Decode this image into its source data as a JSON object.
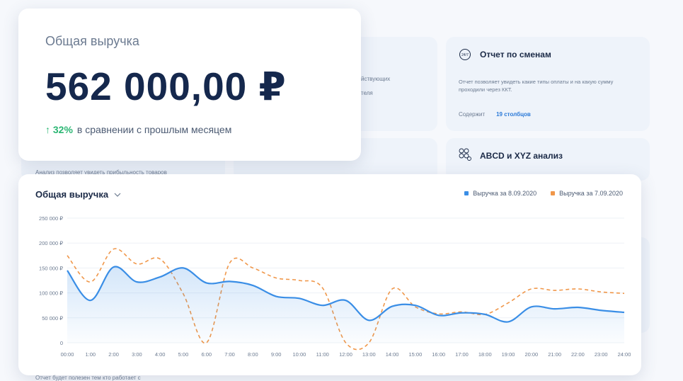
{
  "revenue": {
    "label": "Общая выручка",
    "value": "562 000,00 ₽",
    "change": "↑ 32%",
    "comparison": "в сравнении с прошлым месяцем"
  },
  "background": {
    "partial_text_1": "йствующих",
    "partial_text_2": "теля",
    "partial_desc": "Анализ позволяет увидеть прибыльность товаров",
    "footer_partial": "Отчет будет полезен тем кто работает с",
    "reports": [
      {
        "title": "Отчет по сменам",
        "icon": "clock-24-7-icon",
        "description": "Отчет позволяет увидеть какие типы оплаты и на какую сумму проходили через ККТ.",
        "meta_label": "Содержит",
        "meta_value": "19 столбцов"
      },
      {
        "title": "ABCD и XYZ анализ",
        "icon": "abc-analysis-icon"
      }
    ]
  },
  "chart_data": {
    "type": "line",
    "title": "Общая выручка",
    "x": [
      "00:00",
      "1:00",
      "2:00",
      "3:00",
      "4:00",
      "5:00",
      "6:00",
      "7:00",
      "8:00",
      "9:00",
      "10:00",
      "11:00",
      "12:00",
      "13:00",
      "14:00",
      "15:00",
      "16:00",
      "17:00",
      "18:00",
      "19:00",
      "20:00",
      "21:00",
      "22:00",
      "23:00",
      "24:00"
    ],
    "yticks": [
      "0",
      "50 000 ₽",
      "100 000 ₽",
      "150 000 ₽",
      "200 000 ₽",
      "250 000 ₽"
    ],
    "ylim": [
      0,
      250000
    ],
    "legend_position": "top-right",
    "grid": true,
    "series": [
      {
        "name": "Выручка за 8.09.2020",
        "color": "#3a8ee6",
        "style": "solid-area",
        "values": [
          145000,
          85000,
          152000,
          122000,
          132000,
          150000,
          120000,
          123000,
          115000,
          93000,
          89000,
          75000,
          85000,
          45000,
          73000,
          75000,
          55000,
          60000,
          57000,
          42000,
          72000,
          68000,
          71000,
          65000,
          61000
        ]
      },
      {
        "name": "Выручка за 7.09.2020",
        "color": "#f0974a",
        "style": "dashed",
        "values": [
          175000,
          122000,
          188000,
          158000,
          168000,
          98000,
          0,
          160000,
          150000,
          130000,
          125000,
          110000,
          0,
          0,
          108000,
          72000,
          58000,
          62000,
          57000,
          80000,
          108000,
          105000,
          108000,
          102000,
          99000
        ]
      }
    ]
  }
}
